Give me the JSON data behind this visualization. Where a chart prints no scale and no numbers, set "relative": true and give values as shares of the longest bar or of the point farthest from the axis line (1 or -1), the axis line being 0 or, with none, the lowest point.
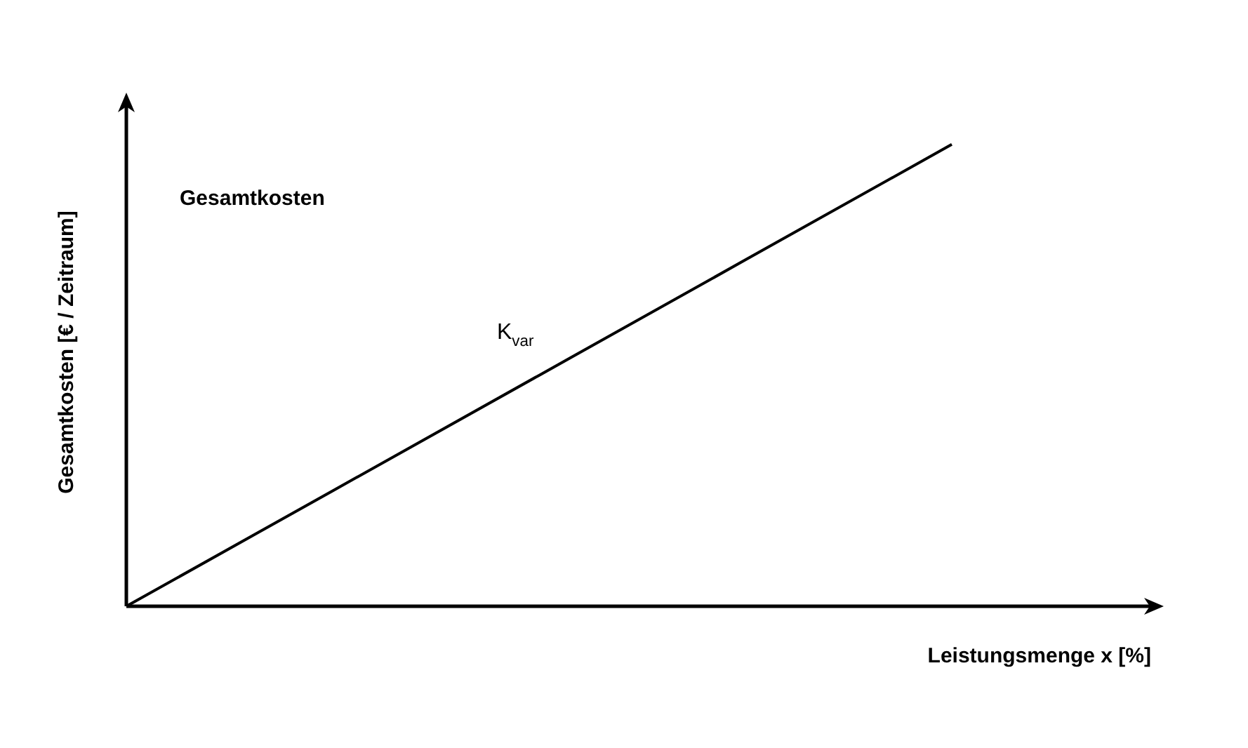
{
  "chart_data": {
    "type": "line",
    "title": "Gesamtkosten",
    "xlabel": "Leistungsmenge x [%]",
    "ylabel": "Gesamtkosten [€ / Zeitraum]",
    "relative": true,
    "categories": [
      null,
      null,
      null,
      null,
      null,
      null
    ],
    "series": [
      {
        "name": "K$_{var}$",
        "color": "#000000",
        "values": [
          0,
          0.25,
          0.5,
          0.75,
          1,
          null
        ]
      }
    ]
  }
}
